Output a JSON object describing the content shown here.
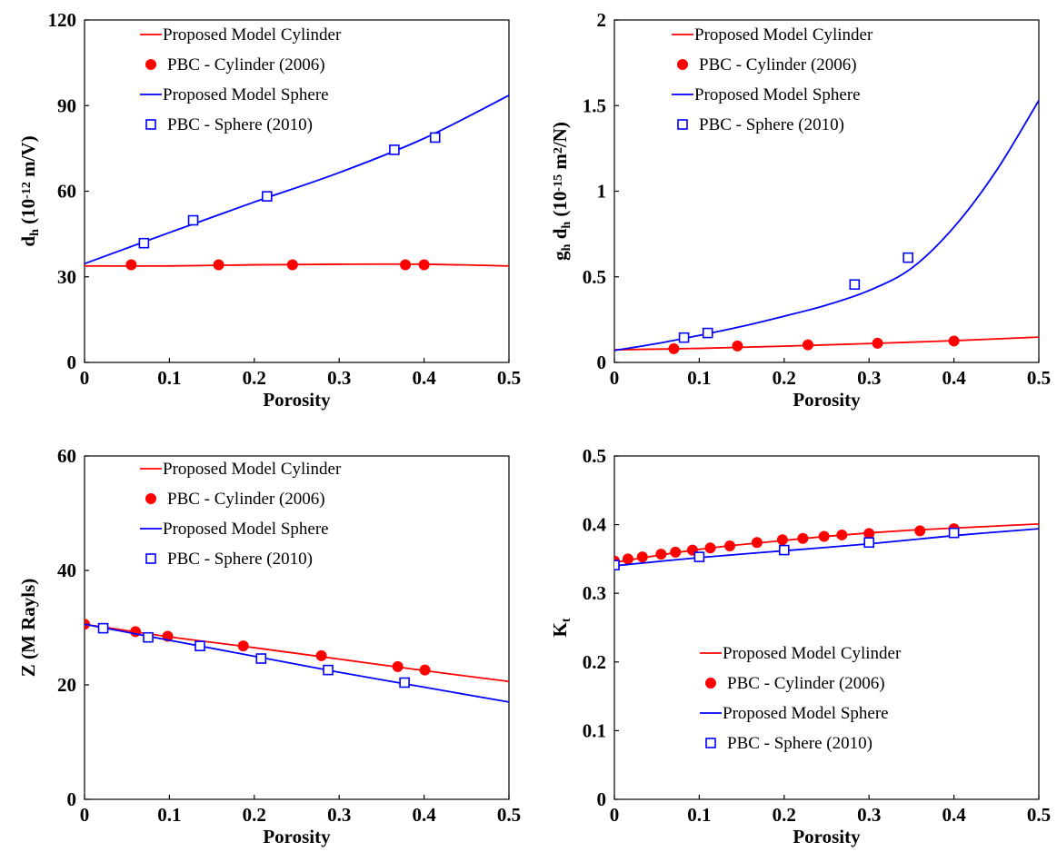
{
  "chart_data": [
    {
      "type": "line",
      "xlabel": "Porosity",
      "ylabel_parts": [
        {
          "t": "d",
          "s": "n"
        },
        {
          "t": "h",
          "s": "sub"
        },
        {
          "t": "  (10",
          "s": "n"
        },
        {
          "t": "-12",
          "s": "sup"
        },
        {
          "t": " m/V)",
          "s": "n"
        }
      ],
      "xlim": [
        0,
        0.5
      ],
      "ylim": [
        0,
        120
      ],
      "xticks": [
        "0",
        "0.1",
        "0.2",
        "0.3",
        "0.4",
        "0.5"
      ],
      "yticks": [
        "0",
        "30",
        "60",
        "90",
        "120"
      ],
      "legend": [
        "Proposed Model Cylinder",
        "PBC - Cylinder (2006)",
        "Proposed Model Sphere",
        "PBC - Sphere (2010)"
      ],
      "legend_position": "top-left",
      "series": [
        {
          "kind": "line",
          "color": "#ff0000",
          "x": [
            0,
            0.1,
            0.2,
            0.3,
            0.4,
            0.5
          ],
          "y": [
            33.8,
            33.8,
            34.2,
            34.4,
            34.4,
            33.8
          ]
        },
        {
          "kind": "circle",
          "color": "#ff0000",
          "x": [
            0.055,
            0.158,
            0.245,
            0.378,
            0.4
          ],
          "y": [
            34.2,
            34.2,
            34.2,
            34.2,
            34.2
          ]
        },
        {
          "kind": "line",
          "color": "#0000ff",
          "x": [
            0,
            0.1,
            0.2,
            0.3,
            0.4,
            0.5
          ],
          "y": [
            34.6,
            45.5,
            56.2,
            66.5,
            78.5,
            93.6
          ]
        },
        {
          "kind": "square",
          "color": "#0000ff",
          "x": [
            0.07,
            0.128,
            0.215,
            0.365,
            0.413
          ],
          "y": [
            41.8,
            49.8,
            58.2,
            74.5,
            78.8
          ]
        }
      ]
    },
    {
      "type": "line",
      "xlabel": "Porosity",
      "ylabel_parts": [
        {
          "t": "g",
          "s": "n"
        },
        {
          "t": "h",
          "s": "sub"
        },
        {
          "t": " d",
          "s": "n"
        },
        {
          "t": "h",
          "s": "sub"
        },
        {
          "t": "  (10",
          "s": "n"
        },
        {
          "t": "-15",
          "s": "sup"
        },
        {
          "t": " m",
          "s": "n"
        },
        {
          "t": "2",
          "s": "sup"
        },
        {
          "t": "/N)",
          "s": "n"
        }
      ],
      "xlim": [
        0,
        0.5
      ],
      "ylim": [
        0,
        2
      ],
      "xticks": [
        "0",
        "0.1",
        "0.2",
        "0.3",
        "0.4",
        "0.5"
      ],
      "yticks": [
        "0",
        "0.5",
        "1",
        "1.5",
        "2"
      ],
      "legend": [
        "Proposed Model Cylinder",
        "PBC - Cylinder (2006)",
        "Proposed Model Sphere",
        "PBC - Sphere (2010)"
      ],
      "legend_position": "top-left",
      "series": [
        {
          "kind": "line",
          "color": "#ff0000",
          "x": [
            0,
            0.1,
            0.2,
            0.3,
            0.4,
            0.5
          ],
          "y": [
            0.074,
            0.082,
            0.095,
            0.11,
            0.127,
            0.148
          ]
        },
        {
          "kind": "circle",
          "color": "#ff0000",
          "x": [
            0.07,
            0.145,
            0.228,
            0.31,
            0.4
          ],
          "y": [
            0.08,
            0.096,
            0.103,
            0.112,
            0.125
          ]
        },
        {
          "kind": "line",
          "color": "#0000ff",
          "x": [
            0,
            0.05,
            0.1,
            0.15,
            0.2,
            0.25,
            0.3,
            0.35,
            0.4,
            0.45,
            0.5
          ],
          "y": [
            0.07,
            0.11,
            0.158,
            0.21,
            0.27,
            0.335,
            0.42,
            0.55,
            0.79,
            1.12,
            1.53
          ]
        },
        {
          "kind": "square",
          "color": "#0000ff",
          "x": [
            0.082,
            0.11,
            0.283,
            0.346
          ],
          "y": [
            0.145,
            0.172,
            0.455,
            0.612
          ]
        }
      ]
    },
    {
      "type": "line",
      "xlabel": "Porosity",
      "ylabel_parts": [
        {
          "t": "Z (M Rayls)",
          "s": "n"
        }
      ],
      "xlim": [
        0,
        0.5
      ],
      "ylim": [
        0,
        60
      ],
      "xticks": [
        "0",
        "0.1",
        "0.2",
        "0.3",
        "0.4",
        "0.5"
      ],
      "yticks": [
        "0",
        "20",
        "40",
        "60"
      ],
      "legend": [
        "Proposed Model Cylinder",
        "PBC - Cylinder (2006)",
        "Proposed Model Sphere",
        "PBC - Sphere (2010)"
      ],
      "legend_position": "top-right",
      "series": [
        {
          "kind": "line",
          "color": "#ff0000",
          "x": [
            0,
            0.1,
            0.2,
            0.3,
            0.4,
            0.5
          ],
          "y": [
            30.6,
            28.4,
            26.5,
            24.5,
            22.5,
            20.6
          ]
        },
        {
          "kind": "circle",
          "color": "#ff0000",
          "x": [
            0,
            0.06,
            0.098,
            0.187,
            0.279,
            0.369,
            0.401
          ],
          "y": [
            30.6,
            29.3,
            28.5,
            26.8,
            25.1,
            23.2,
            22.6
          ]
        },
        {
          "kind": "line",
          "color": "#0000ff",
          "x": [
            0,
            0.1,
            0.2,
            0.3,
            0.4,
            0.5
          ],
          "y": [
            30.6,
            27.8,
            25.0,
            22.2,
            19.6,
            17.0
          ]
        },
        {
          "kind": "square",
          "color": "#0000ff",
          "x": [
            0.022,
            0.075,
            0.136,
            0.208,
            0.287,
            0.377
          ],
          "y": [
            29.9,
            28.3,
            26.8,
            24.6,
            22.6,
            20.4
          ]
        }
      ]
    },
    {
      "type": "line",
      "xlabel": "Porosity",
      "ylabel_parts": [
        {
          "t": "K",
          "s": "n"
        },
        {
          "t": "t",
          "s": "sub"
        }
      ],
      "xlim": [
        0,
        0.5
      ],
      "ylim": [
        0,
        0.5
      ],
      "xticks": [
        "0",
        "0.1",
        "0.2",
        "0.3",
        "0.4",
        "0.5"
      ],
      "yticks": [
        "0",
        "0.1",
        "0.2",
        "0.3",
        "0.4",
        "0.5"
      ],
      "legend": [
        "Proposed Model Cylinder",
        "PBC - Cylinder (2006)",
        "Proposed Model Sphere",
        "PBC - Sphere (2010)"
      ],
      "legend_position": "bottom-center",
      "series": [
        {
          "kind": "line",
          "color": "#ff0000",
          "x": [
            0,
            0.05,
            0.1,
            0.15,
            0.2,
            0.25,
            0.3,
            0.35,
            0.4,
            0.45,
            0.5
          ],
          "y": [
            0.345,
            0.355,
            0.364,
            0.371,
            0.377,
            0.383,
            0.388,
            0.392,
            0.395,
            0.398,
            0.401
          ]
        },
        {
          "kind": "circle",
          "color": "#ff0000",
          "x": [
            0,
            0.016,
            0.033,
            0.055,
            0.072,
            0.092,
            0.113,
            0.136,
            0.168,
            0.198,
            0.222,
            0.247,
            0.268,
            0.3,
            0.36,
            0.4
          ],
          "y": [
            0.347,
            0.35,
            0.353,
            0.357,
            0.36,
            0.363,
            0.366,
            0.369,
            0.374,
            0.378,
            0.38,
            0.383,
            0.385,
            0.387,
            0.391,
            0.394
          ]
        },
        {
          "kind": "line",
          "color": "#0000ff",
          "x": [
            0,
            0.1,
            0.2,
            0.3,
            0.4,
            0.5
          ],
          "y": [
            0.34,
            0.352,
            0.362,
            0.372,
            0.384,
            0.394
          ]
        },
        {
          "kind": "square",
          "color": "#0000ff",
          "x": [
            0,
            0.1,
            0.2,
            0.3,
            0.4
          ],
          "y": [
            0.341,
            0.353,
            0.363,
            0.374,
            0.388
          ]
        }
      ]
    }
  ]
}
